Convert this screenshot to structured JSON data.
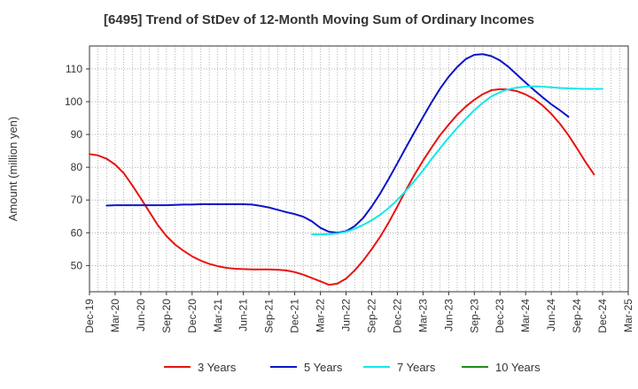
{
  "chart_data": {
    "type": "line",
    "title": "[6495]  Trend of StDev of 12-Month Moving Sum of Ordinary Incomes",
    "ylabel": "Amount (million yen)",
    "xlabel": "",
    "ylim": [
      42,
      117
    ],
    "yticks": [
      50,
      60,
      70,
      80,
      90,
      100,
      110
    ],
    "x_tick_labels": [
      "Dec-19",
      "Mar-20",
      "Jun-20",
      "Sep-20",
      "Dec-20",
      "Mar-21",
      "Jun-21",
      "Sep-21",
      "Dec-21",
      "Mar-22",
      "Jun-22",
      "Sep-22",
      "Dec-22",
      "Mar-23",
      "Jun-23",
      "Sep-23",
      "Dec-23",
      "Mar-24",
      "Jun-24",
      "Sep-24",
      "Dec-24",
      "Mar-25"
    ],
    "x_unit": "month index from Dec-19",
    "xlim": [
      0,
      63
    ],
    "grid": true,
    "legend_position": "bottom",
    "series": [
      {
        "name": "3 Years",
        "color": "#e8130e",
        "x": [
          0,
          1,
          2,
          3,
          4,
          5,
          6,
          7,
          8,
          9,
          10,
          11,
          12,
          13,
          14,
          15,
          16,
          17,
          18,
          19,
          20,
          21,
          22,
          23,
          24,
          25,
          26,
          27,
          28,
          29,
          30,
          31,
          32,
          33,
          34,
          35,
          36,
          37,
          38,
          39,
          40,
          41,
          42,
          43,
          44,
          45,
          46,
          47,
          48,
          49,
          50,
          51,
          52,
          53,
          54,
          55,
          56,
          57,
          58,
          59,
          60
        ],
        "values": [
          84.0,
          83.6,
          82.6,
          80.8,
          78.2,
          74.5,
          70.5,
          66.4,
          62.3,
          59.0,
          56.4,
          54.5,
          52.8,
          51.5,
          50.5,
          49.8,
          49.3,
          49.0,
          48.9,
          48.8,
          48.8,
          48.8,
          48.7,
          48.5,
          48.0,
          47.2,
          46.2,
          45.2,
          44.1,
          44.5,
          46.0,
          48.5,
          51.5,
          55.0,
          58.8,
          63.2,
          68.0,
          73.0,
          77.7,
          82.0,
          86.0,
          89.8,
          93.0,
          96.0,
          98.5,
          100.6,
          102.3,
          103.5,
          103.8,
          103.7,
          103.2,
          102.2,
          100.8,
          98.8,
          96.3,
          93.3,
          89.8,
          85.8,
          81.6,
          77.8,
          null
        ]
      },
      {
        "name": "5 Years",
        "color": "#0a14c8",
        "x": [
          2,
          3,
          4,
          5,
          6,
          7,
          8,
          9,
          10,
          11,
          12,
          13,
          14,
          15,
          16,
          17,
          18,
          19,
          20,
          21,
          22,
          23,
          24,
          25,
          26,
          27,
          28,
          29,
          30,
          31,
          32,
          33,
          34,
          35,
          36,
          37,
          38,
          39,
          40,
          41,
          42,
          43,
          44,
          45,
          46,
          47,
          48,
          49,
          50,
          51,
          52,
          53,
          54,
          55,
          56,
          57,
          58,
          59,
          60
        ],
        "values": [
          68.3,
          68.4,
          68.4,
          68.4,
          68.4,
          68.4,
          68.4,
          68.4,
          68.5,
          68.6,
          68.6,
          68.7,
          68.7,
          68.7,
          68.7,
          68.7,
          68.7,
          68.6,
          68.2,
          67.7,
          67.0,
          66.3,
          65.7,
          64.9,
          63.5,
          61.5,
          60.3,
          60.0,
          60.5,
          62.0,
          64.5,
          68.0,
          72.0,
          76.5,
          81.2,
          86.0,
          90.7,
          95.3,
          99.8,
          104.0,
          107.6,
          110.6,
          113.0,
          114.3,
          114.5,
          113.9,
          112.6,
          110.6,
          108.2,
          105.8,
          103.5,
          101.3,
          99.2,
          97.4,
          95.4,
          null,
          null,
          null,
          null
        ]
      },
      {
        "name": "7 Years",
        "color": "#10e8ea",
        "x": [
          26,
          27,
          28,
          29,
          30,
          31,
          32,
          33,
          34,
          35,
          36,
          37,
          38,
          39,
          40,
          41,
          42,
          43,
          44,
          45,
          46,
          47,
          48,
          49,
          50,
          51,
          52,
          53,
          54,
          55,
          56,
          57,
          58,
          59,
          60
        ],
        "values": [
          59.5,
          59.5,
          59.6,
          59.8,
          60.3,
          61.2,
          62.4,
          63.8,
          65.5,
          67.6,
          70.0,
          72.8,
          75.8,
          79.0,
          82.5,
          85.8,
          89.0,
          92.0,
          94.8,
          97.4,
          99.7,
          101.6,
          102.9,
          103.8,
          104.3,
          104.6,
          104.7,
          104.6,
          104.4,
          104.2,
          104.1,
          104.0,
          103.9,
          103.9,
          103.9
        ]
      },
      {
        "name": "10 Years",
        "color": "#1e8c1e",
        "x": [],
        "values": []
      }
    ]
  }
}
